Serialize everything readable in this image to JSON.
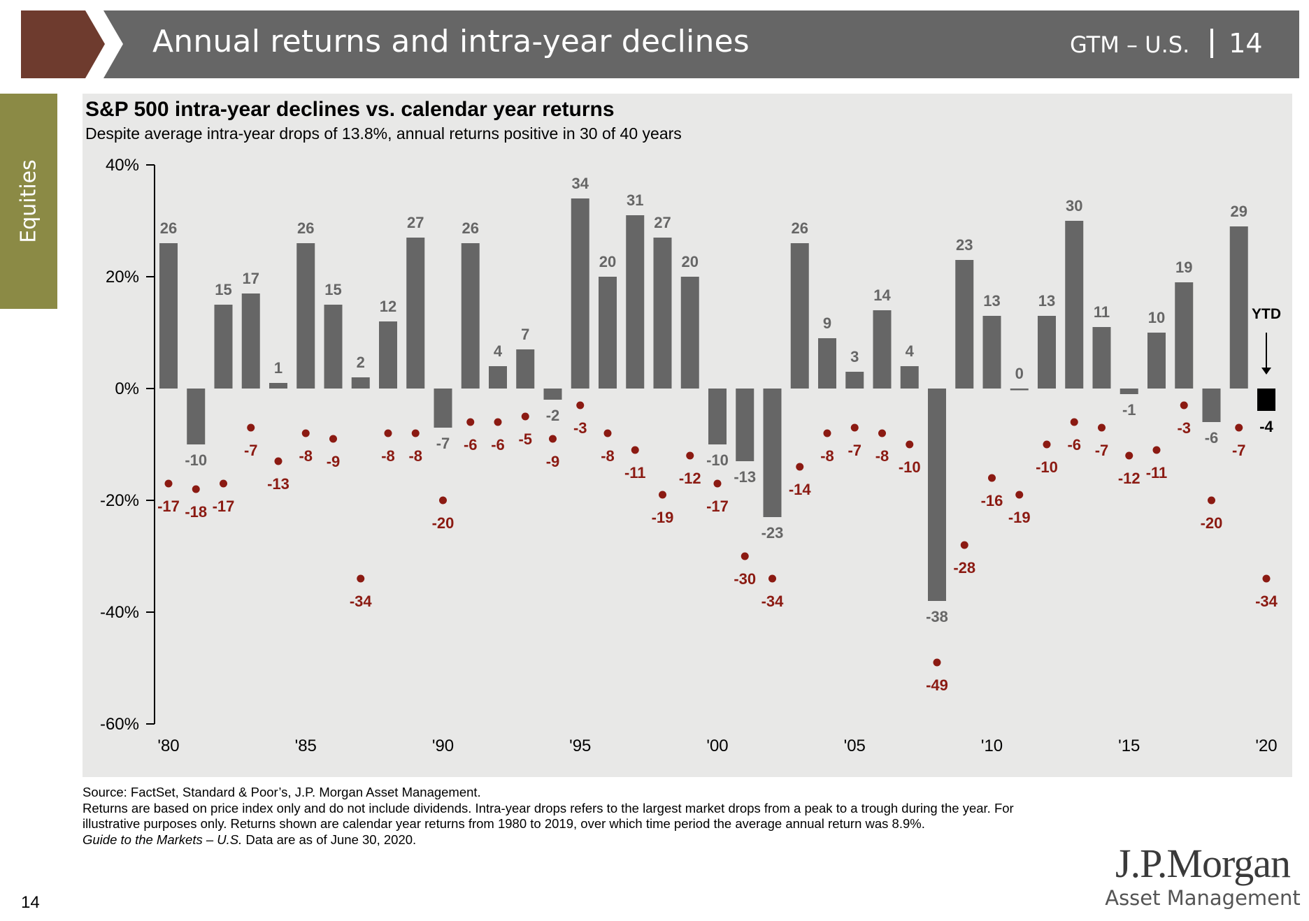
{
  "header": {
    "title": "Annual returns and intra-year declines",
    "code": "GTM – U.S.",
    "page": "14",
    "bar_color": "#666666",
    "accent_color": "#6e3b2e"
  },
  "section_tab": {
    "label": "Equities",
    "color": "#8b8a45"
  },
  "chart_data": {
    "type": "bar",
    "title": "S&P 500 intra-year declines vs. calendar year returns",
    "subtitle": "Despite average intra-year drops of 13.8%, annual returns positive in 30 of 40 years",
    "x": [
      1980,
      1981,
      1982,
      1983,
      1984,
      1985,
      1986,
      1987,
      1988,
      1989,
      1990,
      1991,
      1992,
      1993,
      1994,
      1995,
      1996,
      1997,
      1998,
      1999,
      2000,
      2001,
      2002,
      2003,
      2004,
      2005,
      2006,
      2007,
      2008,
      2009,
      2010,
      2011,
      2012,
      2013,
      2014,
      2015,
      2016,
      2017,
      2018,
      2019,
      2020
    ],
    "x_tick_labels": [
      "'80",
      "'85",
      "'90",
      "'95",
      "'00",
      "'05",
      "'10",
      "'15",
      "'20"
    ],
    "x_tick_years": [
      1980,
      1985,
      1990,
      1995,
      2000,
      2005,
      2010,
      2015,
      2020
    ],
    "y_ticks": [
      40,
      20,
      0,
      -20,
      -40,
      -60
    ],
    "y_tick_labels": [
      "40%",
      "20%",
      "0%",
      "-20%",
      "-40%",
      "-60%"
    ],
    "ylim": [
      -60,
      40
    ],
    "grid": false,
    "series": [
      {
        "kind": "bar",
        "color": "#666666",
        "values": [
          26,
          -10,
          15,
          17,
          1,
          26,
          15,
          2,
          12,
          27,
          -7,
          26,
          4,
          7,
          -2,
          34,
          20,
          31,
          27,
          20,
          -10,
          -13,
          -23,
          26,
          9,
          3,
          14,
          4,
          -38,
          23,
          13,
          0,
          13,
          30,
          11,
          -1,
          10,
          19,
          -6,
          29,
          -4
        ],
        "labels": [
          "26",
          "-10",
          "15",
          "17",
          "1",
          "26",
          "15",
          "2",
          "12",
          "27",
          "-7",
          "26",
          "4",
          "7",
          "-2",
          "34",
          "20",
          "31",
          "27",
          "20",
          "-10",
          "-13",
          "-23",
          "26",
          "9",
          "3",
          "14",
          "4",
          "-38",
          "23",
          "13",
          "0",
          "13",
          "30",
          "11",
          "-1",
          "10",
          "19",
          "-6",
          "29",
          "-4"
        ]
      },
      {
        "kind": "dot",
        "color": "#8b1a12",
        "values": [
          -17,
          -18,
          -17,
          -7,
          -13,
          -8,
          -9,
          -34,
          -8,
          -8,
          -20,
          -6,
          -6,
          -5,
          -9,
          -3,
          -8,
          -11,
          -19,
          -12,
          -17,
          -30,
          -34,
          -14,
          -8,
          -7,
          -8,
          -10,
          -49,
          -28,
          -16,
          -19,
          -10,
          -6,
          -7,
          -12,
          -11,
          -3,
          -20,
          -7,
          -34
        ],
        "labels": [
          "-17",
          "-18",
          "-17",
          "-7",
          "-13",
          "-8",
          "-9",
          "-34",
          "-8",
          "-8",
          "-20",
          "-6",
          "-6",
          "-5",
          "-9",
          "-3",
          "-8",
          "-11",
          "-19",
          "-12",
          "-17",
          "-30",
          "-34",
          "-14",
          "-8",
          "-7",
          "-8",
          "-10",
          "-49",
          "-28",
          "-16",
          "-19",
          "-10",
          "-6",
          "-7",
          "-12",
          "-11",
          "-3",
          "-20",
          "-7",
          "-34"
        ]
      }
    ],
    "ytd": {
      "label": "YTD",
      "value_label": "-4",
      "bar_color": "#000000"
    }
  },
  "footnotes": {
    "source": "Source: FactSet, Standard & Poor’s, J.P. Morgan Asset Management.",
    "note": "Returns are based on price index only and do not include dividends. Intra-year drops refers to the largest market drops from a peak to a trough during the year. For illustrative purposes only. Returns shown are calendar year returns from 1980 to 2019, over which time period the average annual return was 8.9%.",
    "guide_italic": "Guide to the Markets – U.S.",
    "guide_rest": " Data are as of June 30, 2020."
  },
  "logo": {
    "name": "J.P.Morgan",
    "sub": "Asset Management"
  },
  "page_number": "14"
}
